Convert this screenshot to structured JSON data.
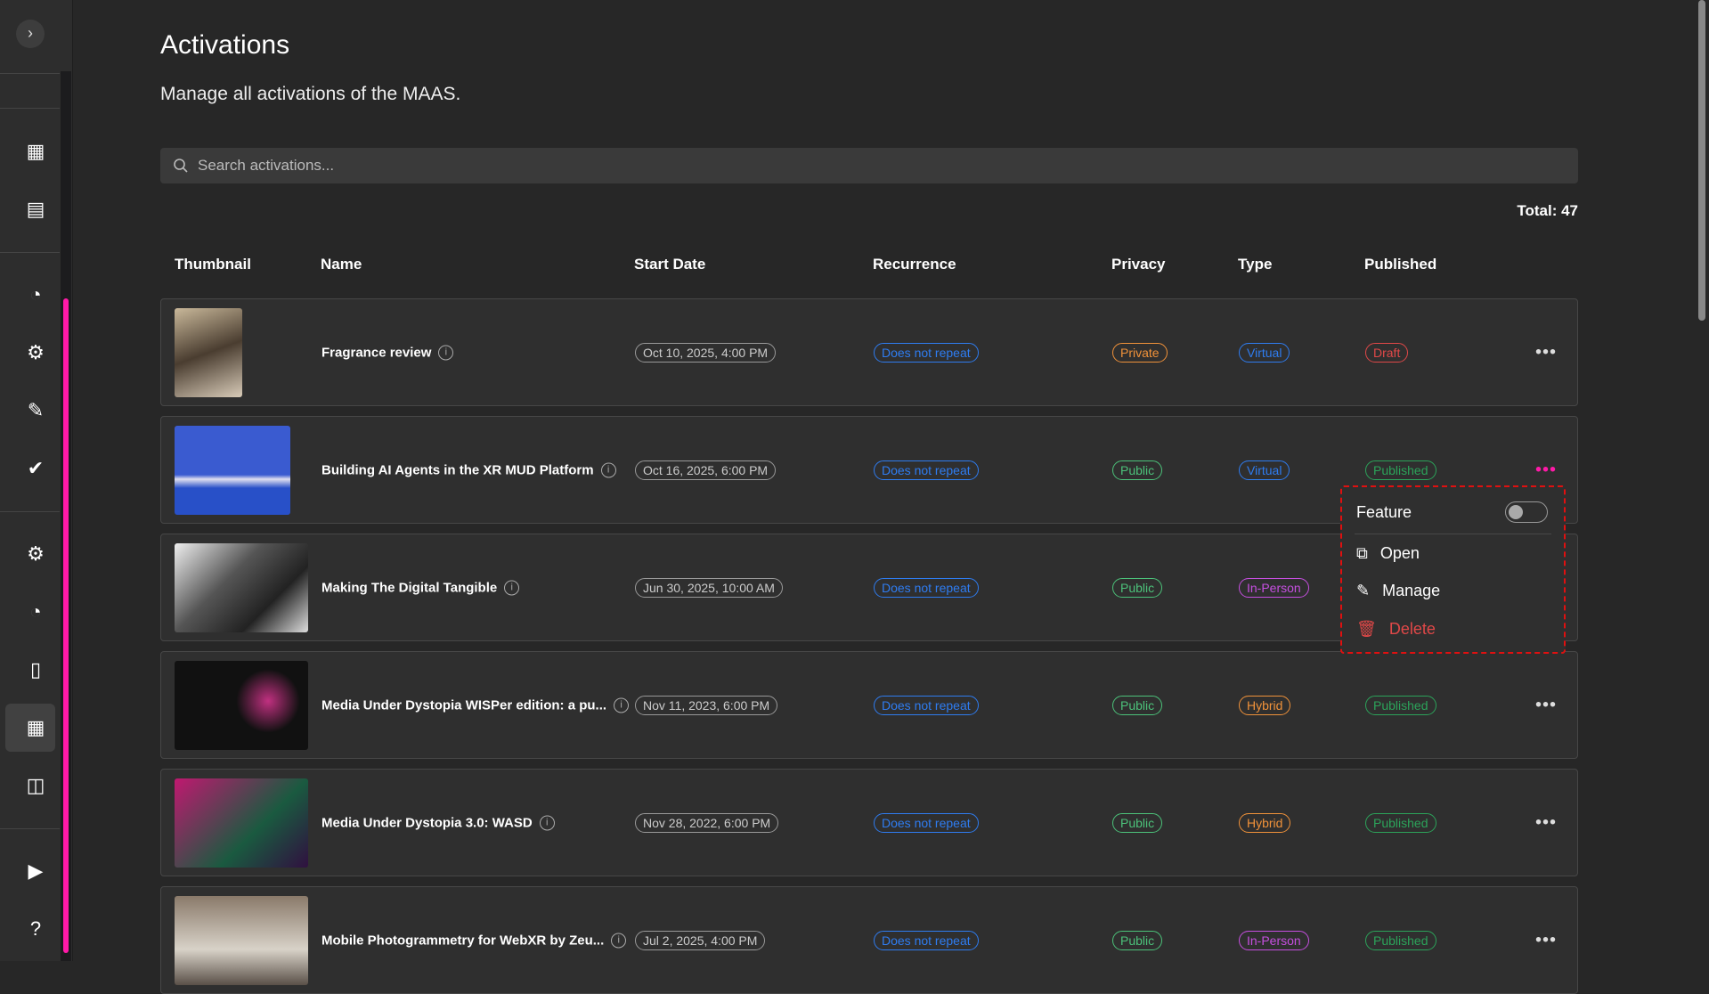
{
  "page": {
    "title": "Activations",
    "subtitle": "Manage all activations of the MAAS.",
    "search_placeholder": "Search activations...",
    "total": "Total: 47"
  },
  "columns": [
    "Thumbnail",
    "Name",
    "Start Date",
    "Recurrence",
    "Privacy",
    "Type",
    "Published"
  ],
  "colors": {
    "accent": "#ff1aa8",
    "private": "#f0923a",
    "public": "#4cc27a",
    "virtual": "#2f7cf0",
    "in_person": "#c64fe0",
    "hybrid": "#f0923a",
    "draft": "#e04848",
    "published": "#2ca35a",
    "recurrence": "#2f7cf0"
  },
  "rows": [
    {
      "name": "Fragrance review",
      "start": "Oct 10, 2025, 4:00 PM",
      "recurrence": "Does not repeat",
      "privacy": "Private",
      "type": "Virtual",
      "published": "Draft"
    },
    {
      "name": "Building AI Agents in the XR MUD Platform",
      "start": "Oct 16, 2025, 6:00 PM",
      "recurrence": "Does not repeat",
      "privacy": "Public",
      "type": "Virtual",
      "published": "Published"
    },
    {
      "name": "Making The Digital Tangible",
      "start": "Jun 30, 2025, 10:00 AM",
      "recurrence": "Does not repeat",
      "privacy": "Public",
      "type": "In-Person",
      "published": ""
    },
    {
      "name": "Media Under Dystopia WISPer edition: a pu...",
      "start": "Nov 11, 2023, 6:00 PM",
      "recurrence": "Does not repeat",
      "privacy": "Public",
      "type": "Hybrid",
      "published": "Published"
    },
    {
      "name": "Media Under Dystopia 3.0: WASD",
      "start": "Nov 28, 2022, 6:00 PM",
      "recurrence": "Does not repeat",
      "privacy": "Public",
      "type": "Hybrid",
      "published": "Published"
    },
    {
      "name": "Mobile Photogrammetry for WebXR by Zeu...",
      "start": "Jul 2, 2025, 4:00 PM",
      "recurrence": "Does not repeat",
      "privacy": "Public",
      "type": "In-Person",
      "published": "Published"
    }
  ],
  "menu": {
    "feature": "Feature",
    "feature_on": false,
    "open": "Open",
    "manage": "Manage",
    "delete": "Delete"
  },
  "sidebar": {
    "icons": [
      "calendar-icon",
      "archive-icon",
      "analytics-icon",
      "settings-icon",
      "signature-icon",
      "check-circle-icon",
      "settings-icon",
      "analytics-icon",
      "devices-icon",
      "calendar-icon",
      "layout-icon",
      "video-icon",
      "help-icon"
    ],
    "active_index": 9
  }
}
